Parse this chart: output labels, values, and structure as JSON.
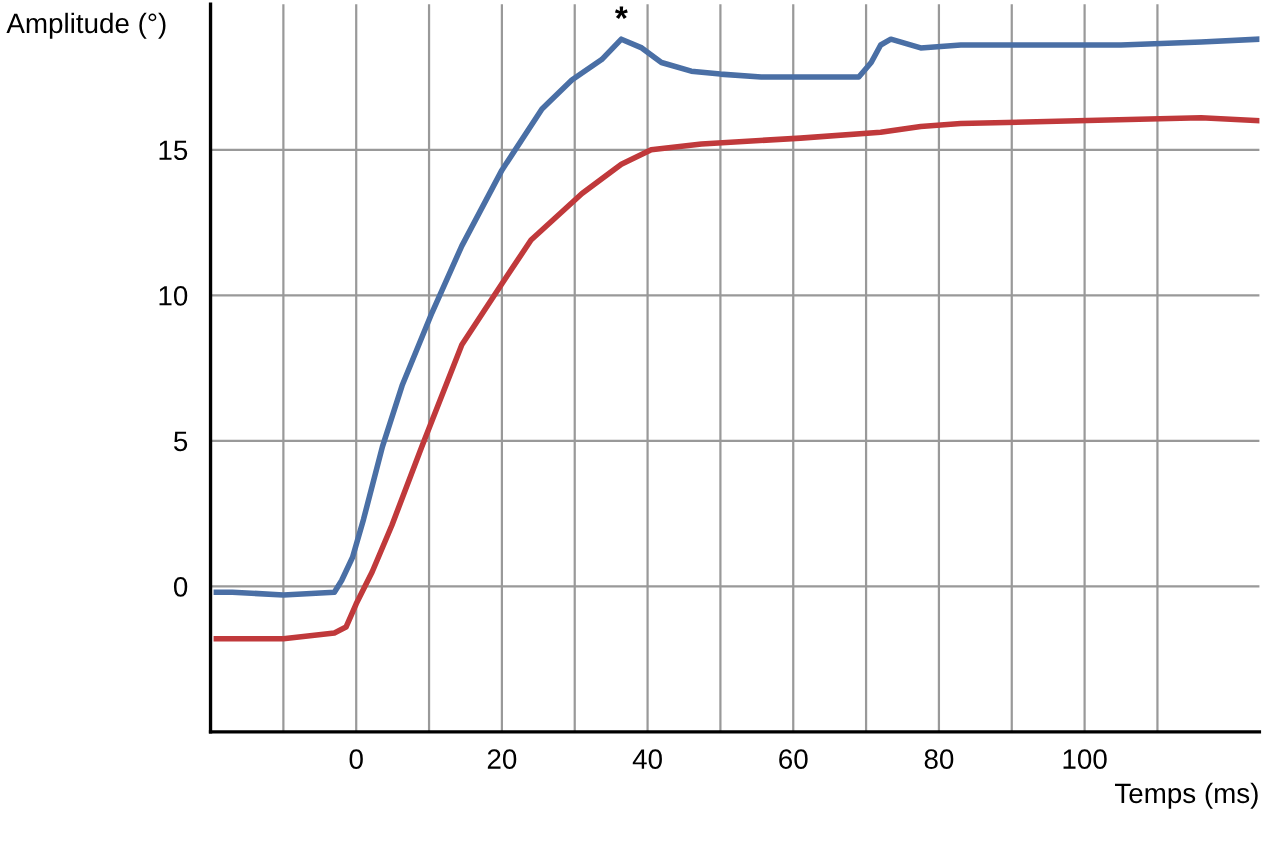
{
  "chart_data": {
    "type": "line",
    "xlabel": "Temps (ms)",
    "ylabel": "Amplitude (°)",
    "xlim": [
      -20,
      124
    ],
    "ylim": [
      -5,
      20
    ],
    "xticks": [
      {
        "value": -10,
        "label": null
      },
      0,
      {
        "value": 10,
        "label": null
      },
      20,
      {
        "value": 30,
        "label": null
      },
      40,
      {
        "value": 50,
        "label": null
      },
      60,
      {
        "value": 70,
        "label": null
      },
      80,
      {
        "value": 90,
        "label": null
      },
      100,
      {
        "value": 110,
        "label": null
      }
    ],
    "yticks": [
      0,
      5,
      10,
      15
    ],
    "grid": true,
    "marker": "none",
    "line_style": "solid",
    "annotations": [
      {
        "text": "*",
        "x": 36.4,
        "y": 18.8
      }
    ],
    "series": [
      {
        "color": "#4a6fa5",
        "x": [
          -19.2,
          -17,
          -10,
          -3,
          -2,
          -0.5,
          1,
          3.6,
          6.3,
          10.4,
          14.5,
          20,
          25.5,
          29.6,
          33.7,
          36.4,
          39.2,
          41.9,
          46,
          50,
          55.6,
          61,
          69,
          70.7,
          72,
          73.4,
          77.5,
          83,
          94,
          105,
          116,
          124
        ],
        "values": [
          -0.2,
          -0.2,
          -0.3,
          -0.2,
          0.2,
          1.0,
          2.3,
          4.8,
          6.9,
          9.4,
          11.7,
          14.3,
          16.4,
          17.4,
          18.1,
          18.8,
          18.5,
          18.0,
          17.7,
          17.6,
          17.5,
          17.5,
          17.5,
          18.0,
          18.6,
          18.8,
          18.5,
          18.6,
          18.6,
          18.6,
          18.7,
          18.8
        ]
      },
      {
        "color": "#c0393b",
        "x": [
          -19.2,
          -10,
          -3,
          -1.4,
          0,
          2.2,
          4.9,
          9,
          14.5,
          20,
          24,
          31,
          36.4,
          40.5,
          47.4,
          61,
          72,
          77.5,
          83,
          99,
          116,
          124
        ],
        "values": [
          -1.8,
          -1.8,
          -1.6,
          -1.4,
          -0.6,
          0.5,
          2.1,
          4.8,
          8.3,
          10.4,
          11.9,
          13.5,
          14.5,
          15.0,
          15.2,
          15.4,
          15.6,
          15.8,
          15.9,
          16.0,
          16.1,
          16.0
        ]
      }
    ]
  }
}
